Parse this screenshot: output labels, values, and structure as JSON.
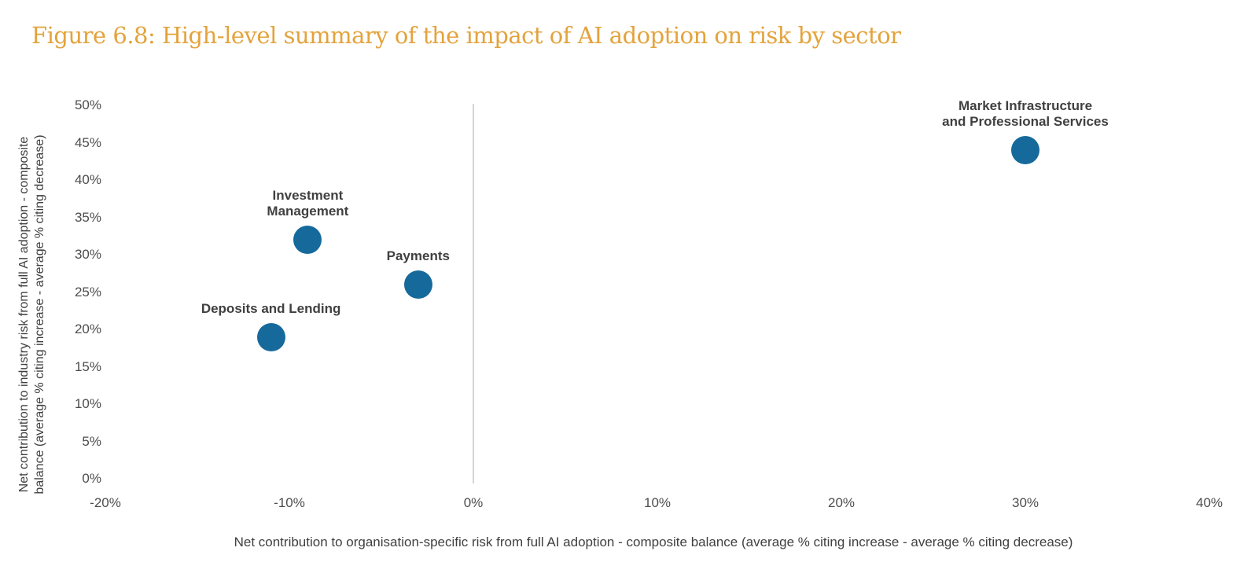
{
  "title": "Figure 6.8: High-level summary of the impact of AI adoption on risk by sector",
  "chart_data": {
    "type": "scatter",
    "title": "Figure 6.8: High-level summary of the impact of AI adoption on risk by sector",
    "xlabel": "Net contribution to organisation-specific risk from full AI adoption - composite balance (average % citing increase - average % citing decrease)",
    "ylabel": "Net contribution to industry risk from full AI adoption - composite balance (average % citing increase - average % citing decrease)",
    "ylabel_lines": [
      "Net contribution to industry risk from full AI adoption - composite",
      "balance (average % citing increase - average % citing decrease)"
    ],
    "xlim": [
      -20,
      40
    ],
    "ylim": [
      0,
      50
    ],
    "x_tick_labels": [
      "-20%",
      "-10%",
      "0%",
      "10%",
      "20%",
      "30%",
      "40%"
    ],
    "y_tick_labels": [
      "50%",
      "45%",
      "40%",
      "35%",
      "30%",
      "25%",
      "20%",
      "15%",
      "10%",
      "5%",
      "0%"
    ],
    "grid": false,
    "zero_line_at_x": 0,
    "legend": "none",
    "points": [
      {
        "label": "Investment Management",
        "label_lines": [
          "Investment",
          "Management"
        ],
        "x": -9,
        "y": 32
      },
      {
        "label": "Payments",
        "label_lines": [
          "Payments"
        ],
        "x": -3,
        "y": 26
      },
      {
        "label": "Deposits and Lending",
        "label_lines": [
          "Deposits and Lending"
        ],
        "x": -11,
        "y": 19
      },
      {
        "label": "Market Infrastructure and Professional Services",
        "label_lines": [
          "Market Infrastructure",
          "and Professional Services"
        ],
        "x": 30,
        "y": 44
      }
    ],
    "colors": {
      "dot": "#16699B",
      "title": "#E3A33C",
      "point_label_text": "#404041",
      "tick_text": "#4D4D4D",
      "axis_title_text": "#404041",
      "zero_line": "#D5D5D5",
      "background": "#FFFFFF"
    }
  }
}
